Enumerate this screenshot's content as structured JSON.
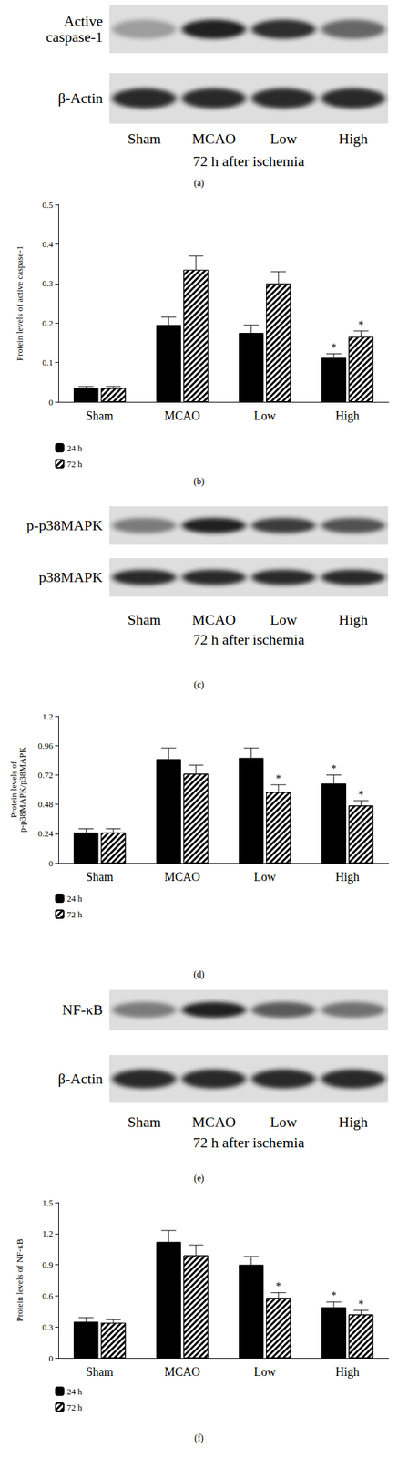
{
  "blots": [
    {
      "panel": "(a)",
      "rows": [
        "Active\ncaspase-1",
        "β-Actin"
      ],
      "lanes": [
        "Sham",
        "MCAO",
        "Low",
        "High"
      ],
      "caption": "72 h after ischemia"
    },
    {
      "panel": "(c)",
      "rows": [
        "p-p38MAPK",
        "p38MAPK"
      ],
      "lanes": [
        "Sham",
        "MCAO",
        "Low",
        "High"
      ],
      "caption": "72 h after ischemia"
    },
    {
      "panel": "(e)",
      "rows": [
        "NF-κB",
        "β-Actin"
      ],
      "lanes": [
        "Sham",
        "MCAO",
        "Low",
        "High"
      ],
      "caption": "72 h after ischemia"
    }
  ],
  "chart_data": [
    {
      "type": "bar",
      "panel": "(b)",
      "y_label": "Protein levels of active caspase-1",
      "categories": [
        "Sham",
        "MCAO",
        "Low",
        "High"
      ],
      "series": [
        {
          "name": "24 h",
          "color": "#000000",
          "marker": "solid",
          "values": [
            0.035,
            0.195,
            0.175,
            0.112
          ],
          "errors": [
            0.004,
            0.02,
            0.02,
            0.01
          ],
          "annotations": [
            null,
            null,
            null,
            "*"
          ]
        },
        {
          "name": "72 h",
          "color": "#ffffff",
          "marker": "hatch",
          "values": [
            0.035,
            0.335,
            0.3,
            0.165
          ],
          "errors": [
            0.004,
            0.035,
            0.03,
            0.015
          ],
          "annotations": [
            null,
            null,
            null,
            "*"
          ]
        }
      ],
      "ylim": [
        0,
        0.5
      ],
      "yticks": [
        0,
        0.1,
        0.2,
        0.3,
        0.4,
        0.5
      ],
      "legend": "bottom-left",
      "grid": false
    },
    {
      "type": "bar",
      "panel": "(d)",
      "y_label": "Protein levels of\np-p38MAPK/p38MAPK",
      "categories": [
        "Sham",
        "MCAO",
        "Low",
        "High"
      ],
      "series": [
        {
          "name": "24 h",
          "color": "#000000",
          "marker": "solid",
          "values": [
            0.25,
            0.85,
            0.86,
            0.65
          ],
          "errors": [
            0.03,
            0.09,
            0.08,
            0.07
          ],
          "annotations": [
            null,
            null,
            null,
            "*"
          ]
        },
        {
          "name": "72 h",
          "color": "#ffffff",
          "marker": "hatch",
          "values": [
            0.25,
            0.73,
            0.58,
            0.47
          ],
          "errors": [
            0.03,
            0.07,
            0.06,
            0.04
          ],
          "annotations": [
            null,
            null,
            "*",
            "*"
          ]
        }
      ],
      "ylim": [
        0,
        1.2
      ],
      "yticks": [
        0,
        0.24,
        0.48,
        0.72,
        0.96,
        1.2
      ],
      "legend": "bottom-left",
      "grid": false
    },
    {
      "type": "bar",
      "panel": "(f)",
      "y_label": "Protein levels of NF-κB",
      "categories": [
        "Sham",
        "MCAO",
        "Low",
        "High"
      ],
      "series": [
        {
          "name": "24 h",
          "color": "#000000",
          "marker": "solid",
          "values": [
            0.35,
            1.12,
            0.9,
            0.49
          ],
          "errors": [
            0.04,
            0.11,
            0.08,
            0.05
          ],
          "annotations": [
            null,
            null,
            null,
            "*"
          ]
        },
        {
          "name": "72 h",
          "color": "#ffffff",
          "marker": "hatch",
          "values": [
            0.34,
            0.99,
            0.58,
            0.42
          ],
          "errors": [
            0.03,
            0.1,
            0.05,
            0.04
          ],
          "annotations": [
            null,
            null,
            "*",
            "*"
          ]
        }
      ],
      "ylim": [
        0,
        1.5
      ],
      "yticks": [
        0,
        0.3,
        0.6,
        0.9,
        1.2,
        1.5
      ],
      "legend": "bottom-left",
      "grid": false
    }
  ]
}
